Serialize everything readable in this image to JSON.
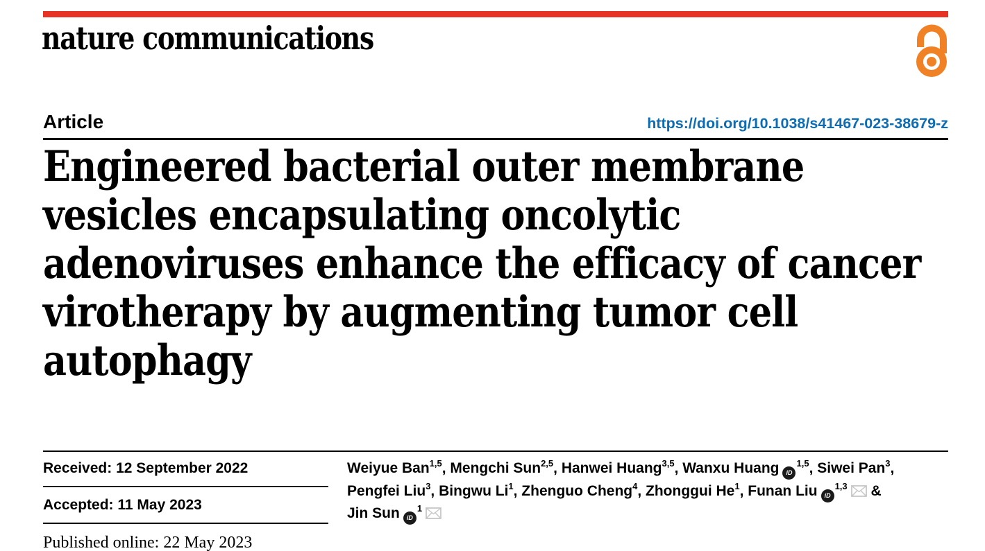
{
  "masthead": {
    "journal_name": "nature communications",
    "rule_color": "#e63323",
    "open_access_icon_color": "#f08125"
  },
  "article_bar": {
    "label": "Article",
    "doi_text": "https://doi.org/10.1038/s41467-023-38679-z",
    "doi_color": "#0e6cb3"
  },
  "title": {
    "lines": [
      "Engineered bacterial outer membrane",
      "vesicles encapsulating oncolytic",
      "adenoviruses enhance the efficacy of cancer",
      "virotherapy by augmenting tumor cell",
      "autophagy"
    ]
  },
  "timeline": {
    "received_label": "Received:",
    "received_date": "12 September 2022",
    "accepted_label": "Accepted:",
    "accepted_date": "11 May 2023",
    "published_label": "Published online:",
    "published_date": "22 May 2023"
  },
  "authors": {
    "orcid_icon_label": "iD",
    "mail_icon_color": "#c6c6c6",
    "lines": [
      [
        {
          "t": "text",
          "v": "Weiyue Ban"
        },
        {
          "t": "sup",
          "v": "1,5"
        },
        {
          "t": "text",
          "v": ", Mengchi Sun"
        },
        {
          "t": "sup",
          "v": "2,5"
        },
        {
          "t": "text",
          "v": ", Hanwei Huang"
        },
        {
          "t": "sup",
          "v": "3,5"
        },
        {
          "t": "text",
          "v": ", Wanxu Huang"
        },
        {
          "t": "orcid"
        },
        {
          "t": "sup",
          "v": "1,5"
        },
        {
          "t": "text",
          "v": ", Siwei Pan"
        },
        {
          "t": "sup",
          "v": "3"
        },
        {
          "t": "text",
          "v": ","
        }
      ],
      [
        {
          "t": "text",
          "v": "Pengfei Liu"
        },
        {
          "t": "sup",
          "v": "3"
        },
        {
          "t": "text",
          "v": ", Bingwu Li"
        },
        {
          "t": "sup",
          "v": "1"
        },
        {
          "t": "text",
          "v": ", Zhenguo Cheng"
        },
        {
          "t": "sup",
          "v": "4"
        },
        {
          "t": "text",
          "v": ", Zhonggui He"
        },
        {
          "t": "sup",
          "v": "1"
        },
        {
          "t": "text",
          "v": ", Funan Liu"
        },
        {
          "t": "orcid"
        },
        {
          "t": "sup",
          "v": "1,3"
        },
        {
          "t": "mail"
        },
        {
          "t": "text",
          "v": " &"
        }
      ],
      [
        {
          "t": "text",
          "v": "Jin Sun"
        },
        {
          "t": "orcid"
        },
        {
          "t": "sup",
          "v": "1"
        },
        {
          "t": "mail"
        }
      ]
    ]
  }
}
